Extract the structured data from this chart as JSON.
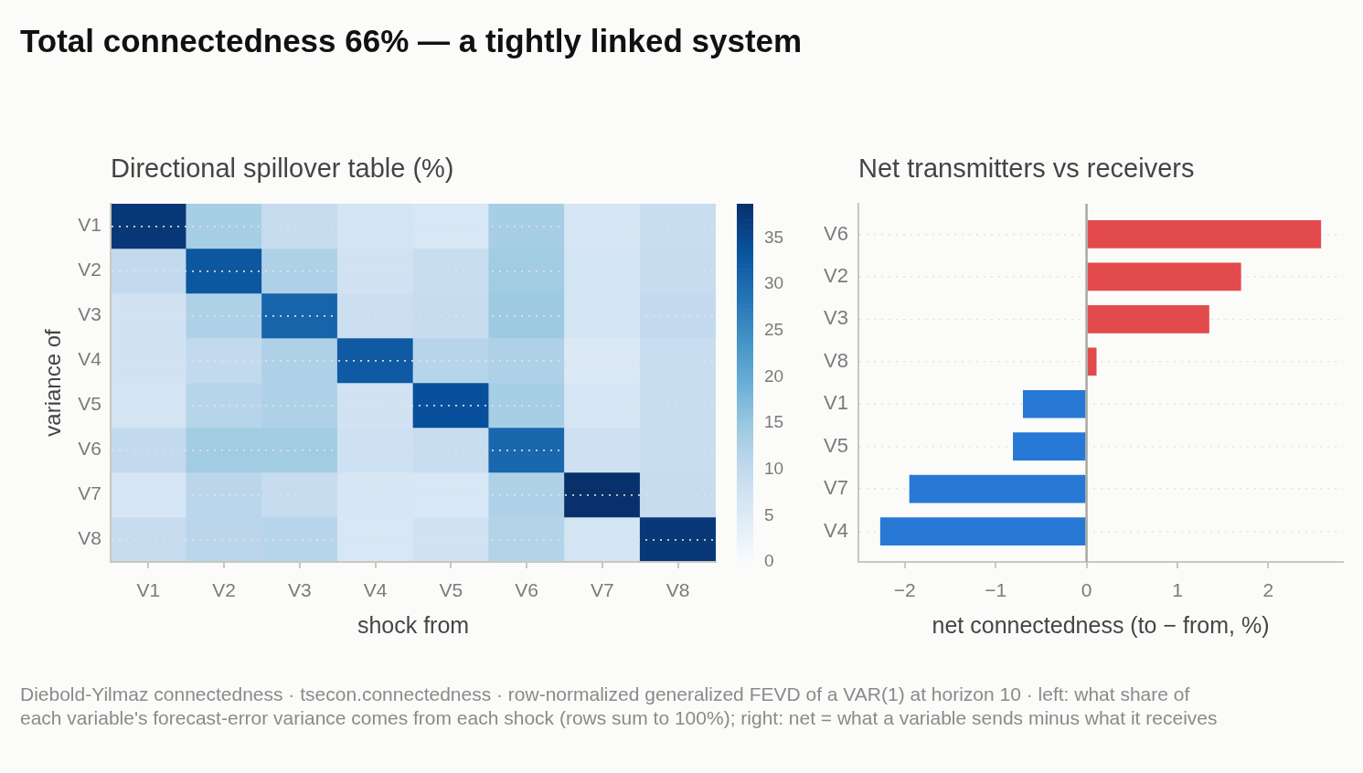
{
  "chart_data": [
    {
      "type": "heatmap",
      "title": "Total connectedness 66% — a tightly linked system",
      "subtitle": "Directional spillover table (%)",
      "xlabel": "shock from",
      "ylabel": "variance of",
      "categories": [
        "V1",
        "V2",
        "V3",
        "V4",
        "V5",
        "V6",
        "V7",
        "V8"
      ],
      "y_categories": [
        "V1",
        "V2",
        "V3",
        "V4",
        "V5",
        "V6",
        "V7",
        "V8"
      ],
      "cells": [
        [
          37.5,
          13.5,
          9.5,
          7,
          6,
          13.5,
          6.5,
          9
        ],
        [
          10,
          33,
          12.5,
          7.5,
          9,
          14,
          7,
          9.5
        ],
        [
          7.5,
          12.5,
          31,
          8.5,
          9.5,
          14.5,
          7,
          10
        ],
        [
          7.5,
          10,
          12.5,
          32.5,
          11.5,
          12.5,
          5.5,
          9
        ],
        [
          7,
          11.5,
          12.5,
          7.5,
          34,
          13.5,
          6.5,
          9
        ],
        [
          10,
          14,
          14,
          8,
          9,
          30.5,
          8,
          9
        ],
        [
          6.5,
          11,
          9.5,
          6.5,
          6,
          12.5,
          38.7,
          9.5
        ],
        [
          9.5,
          11,
          11.5,
          6,
          7.5,
          12,
          7,
          37.5
        ]
      ],
      "clim": [
        0,
        38.7
      ],
      "cticks": [
        0,
        5,
        10,
        15,
        20,
        25,
        30,
        35
      ],
      "grid": "y",
      "annotations": [
        "Diebold-Yilmaz connectedness · tsecon.connectedness · row-normalized generalized FEVD of a VAR(1) at horizon 10 · left: what share of each variable's forecast-error variance comes from each shock (rows sum to 100%); right: net = what a variable sends minus what it receives"
      ]
    },
    {
      "type": "bar",
      "orientation": "horizontal",
      "subtitle": "Net transmitters vs receivers",
      "xlabel": "net connectedness (to − from, %)",
      "categories": [
        "V6",
        "V2",
        "V3",
        "V8",
        "V1",
        "V5",
        "V7",
        "V4"
      ],
      "values": [
        2.58,
        1.7,
        1.35,
        0.11,
        -0.7,
        -0.81,
        -1.95,
        -2.27
      ],
      "colors": [
        "#e34a4b",
        "#e34a4b",
        "#e34a4b",
        "#e34a4b",
        "#2878d6",
        "#2878d6",
        "#2878d6",
        "#2878d6"
      ],
      "xlim": [
        -2.51,
        2.82
      ],
      "xticks": [
        {
          "value": -2,
          "label": "−2"
        },
        {
          "value": -1,
          "label": "−1"
        },
        0,
        1,
        2
      ],
      "grid": "y",
      "ref_lines": [
        {
          "axis": "x",
          "value": 0,
          "color": "#a9a9a2"
        }
      ]
    }
  ]
}
